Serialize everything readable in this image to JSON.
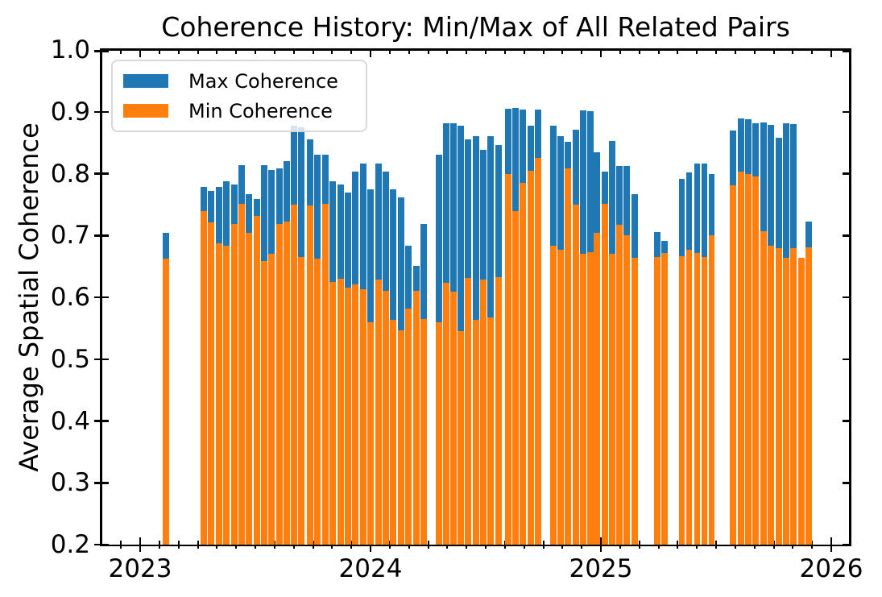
{
  "figure": {
    "title": "Coherence History: Min/Max of All Related Pairs",
    "ylabel": "Average Spatial Coherence",
    "xlabel": "",
    "legend": {
      "items": [
        {
          "label": "Max Coherence",
          "color": "#1f77b4"
        },
        {
          "label": "Min Coherence",
          "color": "#ff7f0e"
        }
      ]
    }
  },
  "chart_data": {
    "type": "bar",
    "title": "Coherence History: Min/Max of All Related Pairs",
    "xlabel": "",
    "ylabel": "Average Spatial Coherence",
    "xlim": [
      2022.832,
      2026.08
    ],
    "ylim": [
      0.2,
      1.0
    ],
    "grid": false,
    "legend_position": "upper left",
    "x_major_ticks": [
      2023,
      2024,
      2025,
      2026
    ],
    "x_tick_labels": [
      "2023",
      "2024",
      "2025",
      "2026"
    ],
    "x_minor_tick_interval_years": 0.0833333,
    "y_ticks": [
      0.2,
      0.3,
      0.4,
      0.5,
      0.6,
      0.7,
      0.8,
      0.9,
      1.0
    ],
    "y_tick_labels": [
      "0.2",
      "0.3",
      "0.4",
      "0.5",
      "0.6",
      "0.7",
      "0.8",
      "0.9",
      "1.0"
    ],
    "bar_width_years": 0.0263,
    "series": [
      {
        "name": "Max Coherence",
        "color": "#1f77b4"
      },
      {
        "name": "Min Coherence",
        "color": "#ff7f0e"
      }
    ],
    "bars": [
      {
        "x": 2023.112,
        "max": 0.704,
        "min": 0.662
      },
      {
        "x": 2023.276,
        "max": 0.779,
        "min": 0.739
      },
      {
        "x": 2023.308,
        "max": 0.772,
        "min": 0.721
      },
      {
        "x": 2023.343,
        "max": 0.779,
        "min": 0.687
      },
      {
        "x": 2023.374,
        "max": 0.788,
        "min": 0.684
      },
      {
        "x": 2023.409,
        "max": 0.782,
        "min": 0.719
      },
      {
        "x": 2023.441,
        "max": 0.814,
        "min": 0.751
      },
      {
        "x": 2023.472,
        "max": 0.767,
        "min": 0.704
      },
      {
        "x": 2023.507,
        "max": 0.759,
        "min": 0.732
      },
      {
        "x": 2023.538,
        "max": 0.814,
        "min": 0.658
      },
      {
        "x": 2023.57,
        "max": 0.806,
        "min": 0.671
      },
      {
        "x": 2023.605,
        "max": 0.808,
        "min": 0.719
      },
      {
        "x": 2023.636,
        "max": 0.82,
        "min": 0.723
      },
      {
        "x": 2023.668,
        "max": 0.877,
        "min": 0.75
      },
      {
        "x": 2023.699,
        "max": 0.875,
        "min": 0.665
      },
      {
        "x": 2023.738,
        "max": 0.855,
        "min": 0.749
      },
      {
        "x": 2023.769,
        "max": 0.83,
        "min": 0.662
      },
      {
        "x": 2023.804,
        "max": 0.83,
        "min": 0.751
      },
      {
        "x": 2023.836,
        "max": 0.787,
        "min": 0.625
      },
      {
        "x": 2023.871,
        "max": 0.782,
        "min": 0.63
      },
      {
        "x": 2023.902,
        "max": 0.769,
        "min": 0.615
      },
      {
        "x": 2023.934,
        "max": 0.803,
        "min": 0.621
      },
      {
        "x": 2023.969,
        "max": 0.816,
        "min": 0.613
      },
      {
        "x": 2024.0,
        "max": 0.774,
        "min": 0.56
      },
      {
        "x": 2024.035,
        "max": 0.816,
        "min": 0.629
      },
      {
        "x": 2024.066,
        "max": 0.803,
        "min": 0.61
      },
      {
        "x": 2024.098,
        "max": 0.774,
        "min": 0.564
      },
      {
        "x": 2024.133,
        "max": 0.761,
        "min": 0.546
      },
      {
        "x": 2024.164,
        "max": 0.684,
        "min": 0.582
      },
      {
        "x": 2024.199,
        "max": 0.651,
        "min": 0.611
      },
      {
        "x": 2024.231,
        "max": 0.719,
        "min": 0.565
      },
      {
        "x": 2024.297,
        "max": 0.831,
        "min": 0.56
      },
      {
        "x": 2024.329,
        "max": 0.882,
        "min": 0.623
      },
      {
        "x": 2024.36,
        "max": 0.881,
        "min": 0.609
      },
      {
        "x": 2024.392,
        "max": 0.877,
        "min": 0.545
      },
      {
        "x": 2024.423,
        "max": 0.855,
        "min": 0.631
      },
      {
        "x": 2024.458,
        "max": 0.861,
        "min": 0.564
      },
      {
        "x": 2024.49,
        "max": 0.839,
        "min": 0.629
      },
      {
        "x": 2024.521,
        "max": 0.861,
        "min": 0.568
      },
      {
        "x": 2024.556,
        "max": 0.846,
        "min": 0.633
      },
      {
        "x": 2024.598,
        "max": 0.905,
        "min": 0.799
      },
      {
        "x": 2024.629,
        "max": 0.906,
        "min": 0.74
      },
      {
        "x": 2024.661,
        "max": 0.903,
        "min": 0.785
      },
      {
        "x": 2024.696,
        "max": 0.877,
        "min": 0.804
      },
      {
        "x": 2024.727,
        "max": 0.903,
        "min": 0.825
      },
      {
        "x": 2024.794,
        "max": 0.877,
        "min": 0.683
      },
      {
        "x": 2024.825,
        "max": 0.861,
        "min": 0.677
      },
      {
        "x": 2024.857,
        "max": 0.851,
        "min": 0.808
      },
      {
        "x": 2024.892,
        "max": 0.871,
        "min": 0.75
      },
      {
        "x": 2024.923,
        "max": 0.902,
        "min": 0.671
      },
      {
        "x": 2024.955,
        "max": 0.901,
        "min": 0.673
      },
      {
        "x": 2024.983,
        "max": 0.835,
        "min": 0.704
      },
      {
        "x": 2025.018,
        "max": 0.803,
        "min": 0.751
      },
      {
        "x": 2025.049,
        "max": 0.853,
        "min": 0.67
      },
      {
        "x": 2025.08,
        "max": 0.812,
        "min": 0.717
      },
      {
        "x": 2025.112,
        "max": 0.812,
        "min": 0.7
      },
      {
        "x": 2025.147,
        "max": 0.767,
        "min": 0.664
      },
      {
        "x": 2025.245,
        "max": 0.705,
        "min": 0.665
      },
      {
        "x": 2025.276,
        "max": 0.691,
        "min": 0.672
      },
      {
        "x": 2025.352,
        "max": 0.791,
        "min": 0.666
      },
      {
        "x": 2025.383,
        "max": 0.802,
        "min": 0.677
      },
      {
        "x": 2025.418,
        "max": 0.816,
        "min": 0.672
      },
      {
        "x": 2025.45,
        "max": 0.816,
        "min": 0.665
      },
      {
        "x": 2025.481,
        "max": 0.8,
        "min": 0.7
      },
      {
        "x": 2025.573,
        "max": 0.87,
        "min": 0.781
      },
      {
        "x": 2025.608,
        "max": 0.889,
        "min": 0.803
      },
      {
        "x": 2025.64,
        "max": 0.888,
        "min": 0.799
      },
      {
        "x": 2025.671,
        "max": 0.881,
        "min": 0.795
      },
      {
        "x": 2025.706,
        "max": 0.883,
        "min": 0.707
      },
      {
        "x": 2025.738,
        "max": 0.879,
        "min": 0.684
      },
      {
        "x": 2025.773,
        "max": 0.858,
        "min": 0.68
      },
      {
        "x": 2025.804,
        "max": 0.881,
        "min": 0.664
      },
      {
        "x": 2025.836,
        "max": 0.88,
        "min": 0.679
      },
      {
        "x": 2025.871,
        "max": 0.664,
        "min": 0.664
      },
      {
        "x": 2025.902,
        "max": 0.723,
        "min": 0.681
      }
    ]
  }
}
